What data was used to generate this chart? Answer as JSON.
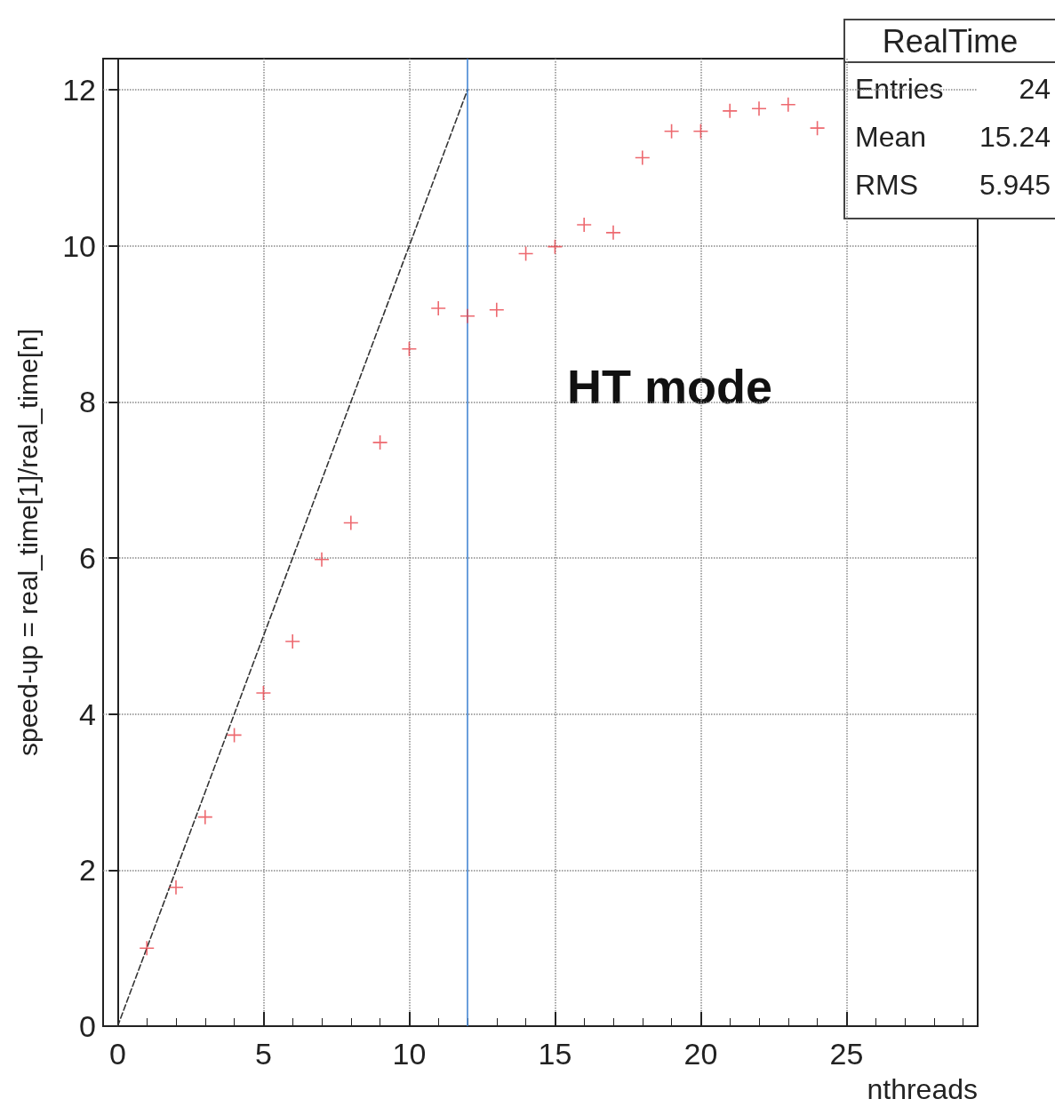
{
  "chart_data": {
    "type": "scatter",
    "xlabel": "nthreads",
    "ylabel": "speed-up = real_time[1]/real_time[n]",
    "xlim": [
      -0.5,
      29.5
    ],
    "xticks": [
      0,
      5,
      10,
      15,
      20,
      25
    ],
    "ylim": [
      0,
      12.4
    ],
    "yticks": [
      0,
      2,
      4,
      6,
      8,
      10,
      12
    ],
    "grid": true,
    "legend": false,
    "series": [
      {
        "color": "#e8434b",
        "marker": "cross",
        "x": [
          1,
          2,
          3,
          4,
          5,
          6,
          7,
          8,
          9,
          10,
          11,
          12,
          13,
          14,
          15,
          16,
          17,
          18,
          19,
          20,
          21,
          22,
          23,
          24
        ],
        "values": [
          1.0,
          1.78,
          2.68,
          3.73,
          4.27,
          4.93,
          5.98,
          6.45,
          7.48,
          8.68,
          9.2,
          9.1,
          9.18,
          9.9,
          9.99,
          10.27,
          10.17,
          11.13,
          11.47,
          11.47,
          11.73,
          11.76,
          11.81,
          11.51
        ]
      },
      {
        "type": "line",
        "color": "#333333",
        "marker": "none",
        "line_style": "dashed",
        "x": [
          0,
          12
        ],
        "values": [
          0,
          12
        ]
      }
    ],
    "ref_lines": [
      {
        "axis": "x",
        "value": 12,
        "color": "#3a7fd0"
      }
    ],
    "annotations": [
      "HT mode",
      "RealTime",
      "Entries",
      "24",
      "Mean",
      "15.24",
      "RMS",
      "5.945"
    ]
  }
}
